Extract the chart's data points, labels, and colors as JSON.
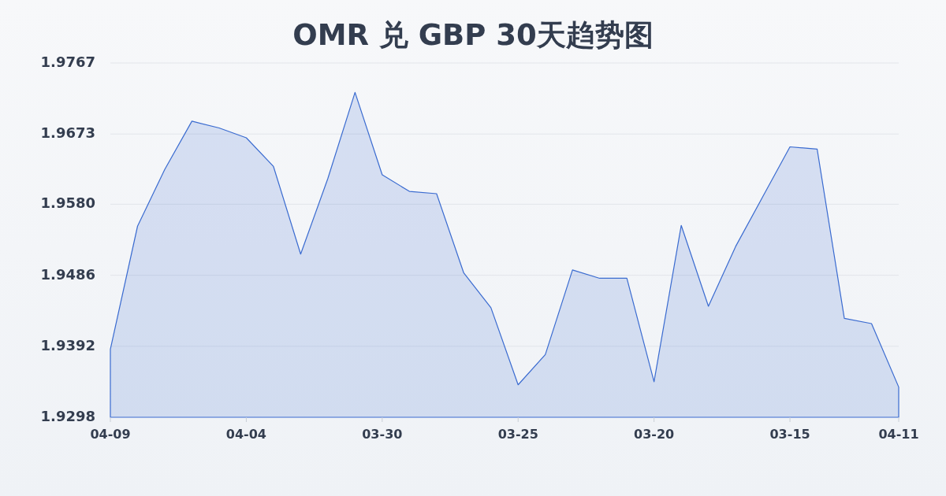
{
  "chart_data": {
    "type": "area",
    "title": "OMR 兑 GBP 30天趋势图",
    "categories": [
      "04-09",
      null,
      null,
      null,
      null,
      "04-04",
      null,
      null,
      null,
      null,
      "03-30",
      null,
      null,
      null,
      null,
      "03-25",
      null,
      null,
      null,
      null,
      "03-20",
      null,
      null,
      null,
      null,
      "03-15",
      null,
      null,
      null,
      "04-11"
    ],
    "values": [
      1.9388,
      1.9551,
      1.9626,
      1.969,
      1.9681,
      1.9668,
      1.963,
      1.9514,
      1.9614,
      1.9728,
      1.9619,
      1.9597,
      1.9594,
      1.9489,
      1.9443,
      1.9341,
      1.9381,
      1.9493,
      1.9482,
      1.9482,
      1.9345,
      1.9552,
      1.9445,
      1.9524,
      1.959,
      1.9656,
      1.9653,
      1.9429,
      1.9422,
      1.9338
    ],
    "color": "#3a6bd0",
    "ylim": [
      1.9298,
      1.9767
    ],
    "yticks": [
      {
        "value": 1.9298,
        "label": "1.9298"
      },
      {
        "value": 1.9392,
        "label": "1.9392"
      },
      {
        "value": 1.9486,
        "label": "1.9486"
      },
      {
        "value": 1.958,
        "label": "1.9580"
      },
      {
        "value": 1.9673,
        "label": "1.9673"
      },
      {
        "value": 1.9767,
        "label": "1.9767"
      }
    ],
    "grid": "y"
  }
}
